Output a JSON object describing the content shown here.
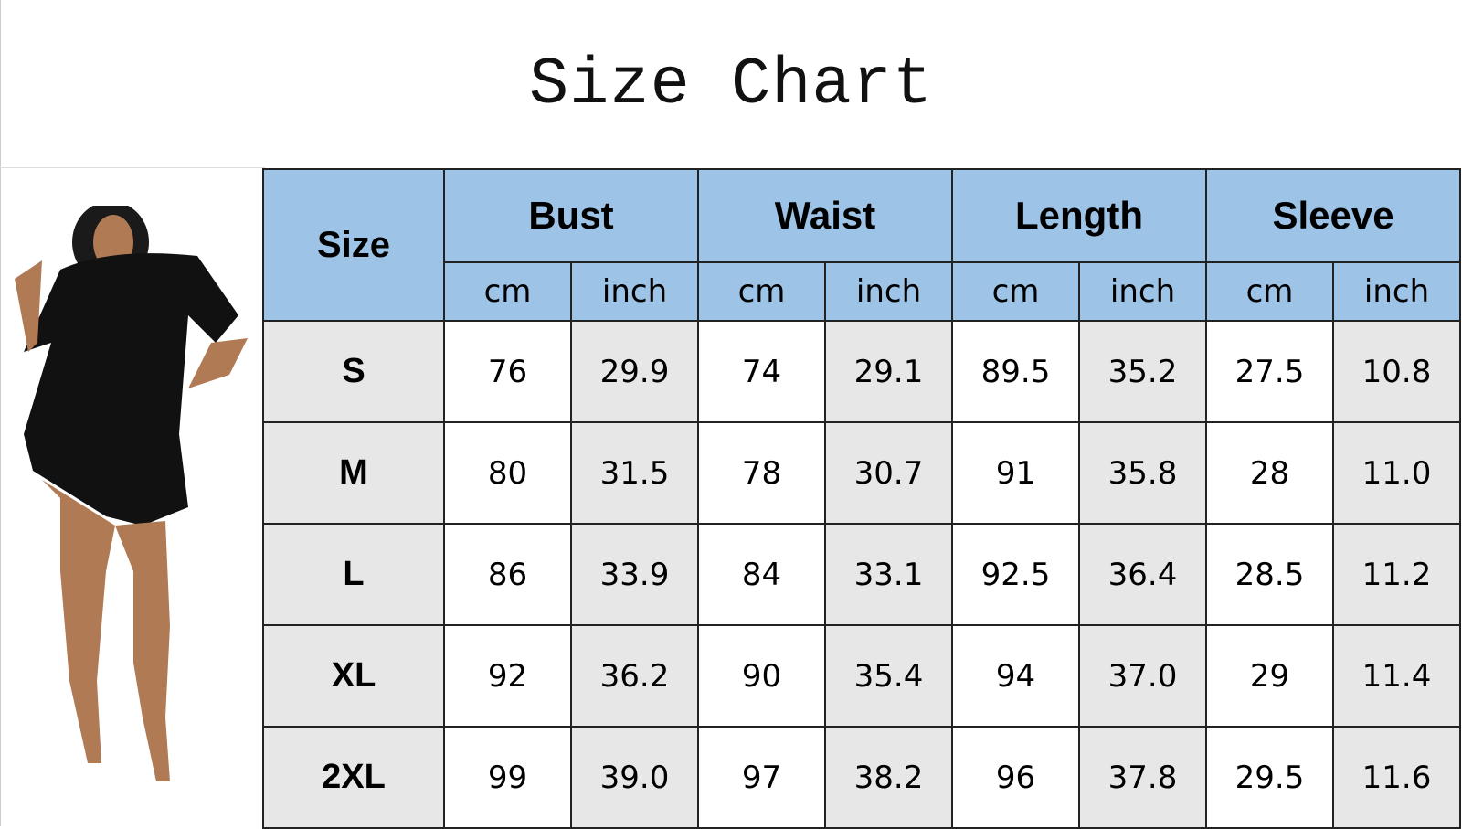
{
  "title": "Size Chart",
  "table": {
    "size_header": "Size",
    "groups": [
      "Bust",
      "Waist",
      "Length",
      "Sleeve"
    ],
    "units": [
      "cm",
      "inch"
    ],
    "rows": [
      {
        "size": "S",
        "values": [
          "76",
          "29.9",
          "74",
          "29.1",
          "89.5",
          "35.2",
          "27.5",
          "10.8"
        ]
      },
      {
        "size": "M",
        "values": [
          "80",
          "31.5",
          "78",
          "30.7",
          "91",
          "35.8",
          "28",
          "11.0"
        ]
      },
      {
        "size": "L",
        "values": [
          "86",
          "33.9",
          "84",
          "33.1",
          "92.5",
          "36.4",
          "28.5",
          "11.2"
        ]
      },
      {
        "size": "XL",
        "values": [
          "92",
          "36.2",
          "90",
          "35.4",
          "94",
          "37.0",
          "29",
          "11.4"
        ]
      },
      {
        "size": "2XL",
        "values": [
          "99",
          "39.0",
          "97",
          "38.2",
          "96",
          "37.8",
          "29.5",
          "11.6"
        ]
      }
    ]
  },
  "colors": {
    "header": "#9dc3e6",
    "shaded": "#e7e7e7"
  }
}
